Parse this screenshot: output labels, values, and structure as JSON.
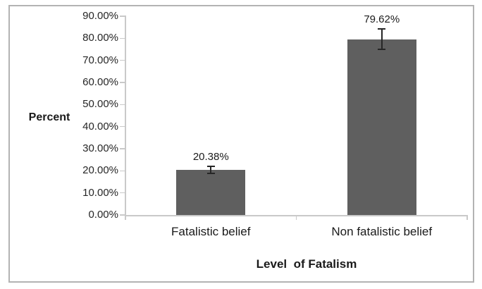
{
  "frame": {
    "border_color": "#b3b3b3",
    "background": "#ffffff"
  },
  "chart_data": {
    "type": "bar",
    "title": "",
    "xlabel": "Level  of Fatalism",
    "ylabel": "Percent",
    "categories": [
      "Fatalistic belief",
      "Non fatalistic belief"
    ],
    "values": [
      20.38,
      79.62
    ],
    "data_labels": [
      "20.38%",
      "79.62%"
    ],
    "error_bars_pct": [
      1.5,
      4.5
    ],
    "ylim": [
      0,
      90
    ],
    "yticks": [
      0,
      10,
      20,
      30,
      40,
      50,
      60,
      70,
      80,
      90
    ],
    "ytick_labels": [
      "0.00%",
      "10.00%",
      "20.00%",
      "30.00%",
      "40.00%",
      "50.00%",
      "60.00%",
      "70.00%",
      "80.00%",
      "90.00%"
    ],
    "grid": false,
    "legend": "none",
    "bar_color": "#5f5f5f",
    "axis_color": "#c9c9c9",
    "error_bar_color": "#262626",
    "text_color": "#1a1a1a"
  }
}
